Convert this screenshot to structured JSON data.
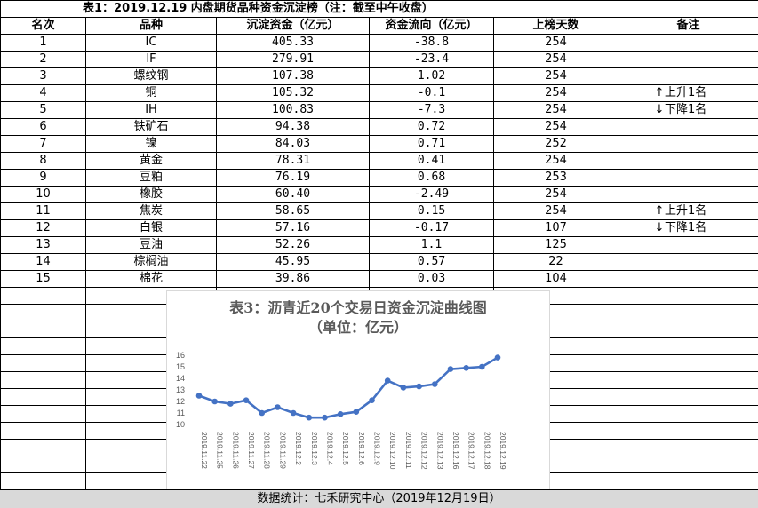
{
  "title": "表1：2019.12.19 内盘期货品种资金沉淀榜（注：截至中午收盘）",
  "headers": [
    "名次",
    "品种",
    "沉淀资金（亿元）",
    "资金流向（亿元）",
    "上榜天数",
    "备注"
  ],
  "rows": [
    {
      "rank": "1",
      "name": "IC",
      "fund": "405.33",
      "flow": "-38.8",
      "days": "254",
      "note": ""
    },
    {
      "rank": "2",
      "name": "IF",
      "fund": "279.91",
      "flow": "-23.4",
      "days": "254",
      "note": ""
    },
    {
      "rank": "3",
      "name": "螺纹钢",
      "fund": "107.38",
      "flow": "1.02",
      "days": "254",
      "note": ""
    },
    {
      "rank": "4",
      "name": "铜",
      "fund": "105.32",
      "flow": "-0.1",
      "days": "254",
      "note": "上升1名",
      "note_icon": "arrow-up"
    },
    {
      "rank": "5",
      "name": "IH",
      "fund": "100.83",
      "flow": "-7.3",
      "days": "254",
      "note": "下降1名",
      "note_icon": "arrow-down"
    },
    {
      "rank": "6",
      "name": "铁矿石",
      "fund": "94.38",
      "flow": "0.72",
      "days": "254",
      "note": ""
    },
    {
      "rank": "7",
      "name": "镍",
      "fund": "84.03",
      "flow": "0.71",
      "days": "252",
      "note": ""
    },
    {
      "rank": "8",
      "name": "黄金",
      "fund": "78.31",
      "flow": "0.41",
      "days": "254",
      "note": ""
    },
    {
      "rank": "9",
      "name": "豆粕",
      "fund": "76.19",
      "flow": "0.68",
      "days": "253",
      "note": ""
    },
    {
      "rank": "10",
      "name": "橡胶",
      "fund": "60.40",
      "flow": "-2.49",
      "days": "254",
      "note": ""
    },
    {
      "rank": "11",
      "name": "焦炭",
      "fund": "58.65",
      "flow": "0.15",
      "days": "254",
      "note": "上升1名",
      "note_icon": "arrow-up"
    },
    {
      "rank": "12",
      "name": "白银",
      "fund": "57.16",
      "flow": "-0.17",
      "days": "107",
      "note": "下降1名",
      "note_icon": "arrow-down"
    },
    {
      "rank": "13",
      "name": "豆油",
      "fund": "52.26",
      "flow": "1.1",
      "days": "125",
      "note": ""
    },
    {
      "rank": "14",
      "name": "棕榈油",
      "fund": "45.95",
      "flow": "0.57",
      "days": "22",
      "note": ""
    },
    {
      "rank": "15",
      "name": "棉花",
      "fund": "39.86",
      "flow": "0.03",
      "days": "104",
      "note": ""
    }
  ],
  "footer": "数据统计：七禾研究中心（2019年12月19日）",
  "chart_data": {
    "type": "line",
    "title": "表3：沥青近20个交易日资金沉淀曲线图",
    "subtitle": "（单位：亿元）",
    "categories": [
      "2019.11.22",
      "2019.11.25",
      "2019.11.26",
      "2019.11.27",
      "2019.11.28",
      "2019.11.29",
      "2019.12.2",
      "2019.12.3",
      "2019.12.4",
      "2019.12.5",
      "2019.12.6",
      "2019.12.9",
      "2019.12.10",
      "2019.12.11",
      "2019.12.12",
      "2019.12.13",
      "2019.12.16",
      "2019.12.17",
      "2019.12.18",
      "2019.12.19"
    ],
    "values": [
      12.5,
      12.0,
      11.8,
      12.1,
      11.0,
      11.5,
      11.0,
      10.6,
      10.6,
      10.9,
      11.1,
      12.1,
      13.8,
      13.2,
      13.3,
      13.5,
      14.8,
      14.9,
      15.0,
      15.8
    ],
    "ylim": [
      10,
      16
    ],
    "yticks": [
      10,
      11,
      12,
      13,
      14,
      15,
      16
    ],
    "color": "#4472c4",
    "grid": false
  }
}
